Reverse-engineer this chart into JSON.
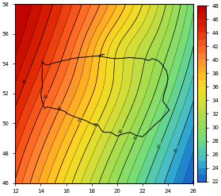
{
  "xlim": [
    12,
    26
  ],
  "ylim": [
    46,
    58
  ],
  "xticks": [
    12,
    14,
    16,
    18,
    20,
    22,
    24,
    26
  ],
  "yticks": [
    46,
    48,
    50,
    52,
    54,
    56,
    58
  ],
  "vmin": 22,
  "vmax": 48,
  "colorbar_ticks": [
    22,
    24,
    26,
    28,
    30,
    32,
    34,
    36,
    38,
    40,
    42,
    44,
    46,
    48
  ],
  "contour_levels_step": 1,
  "figsize": [
    2.79,
    2.47
  ],
  "dpi": 100,
  "colormap": [
    [
      0.0,
      "#1a5fc8"
    ],
    [
      0.04,
      "#1e7acc"
    ],
    [
      0.08,
      "#2299d4"
    ],
    [
      0.12,
      "#44bbcc"
    ],
    [
      0.18,
      "#55ccaa"
    ],
    [
      0.25,
      "#77dd77"
    ],
    [
      0.33,
      "#99dd55"
    ],
    [
      0.4,
      "#bbdd44"
    ],
    [
      0.46,
      "#dddd33"
    ],
    [
      0.52,
      "#eedd22"
    ],
    [
      0.58,
      "#ffcc22"
    ],
    [
      0.64,
      "#ffaa22"
    ],
    [
      0.7,
      "#ff8833"
    ],
    [
      0.76,
      "#ff6622"
    ],
    [
      0.82,
      "#ee4411"
    ],
    [
      0.88,
      "#dd2200"
    ],
    [
      0.94,
      "#cc1100"
    ],
    [
      1.0,
      "#bb0000"
    ]
  ],
  "poland_border": [
    [
      14.12,
      54.18
    ],
    [
      14.22,
      54.05
    ],
    [
      14.35,
      53.95
    ],
    [
      14.55,
      53.92
    ],
    [
      15.0,
      54.05
    ],
    [
      15.5,
      54.15
    ],
    [
      16.0,
      54.25
    ],
    [
      16.5,
      54.35
    ],
    [
      17.0,
      54.42
    ],
    [
      17.5,
      54.45
    ],
    [
      18.0,
      54.5
    ],
    [
      18.5,
      54.52
    ],
    [
      19.0,
      54.45
    ],
    [
      19.5,
      54.38
    ],
    [
      20.0,
      54.35
    ],
    [
      20.5,
      54.38
    ],
    [
      21.0,
      54.42
    ],
    [
      21.5,
      54.38
    ],
    [
      22.0,
      54.35
    ],
    [
      22.5,
      54.22
    ],
    [
      22.76,
      54.35
    ],
    [
      23.2,
      54.22
    ],
    [
      23.5,
      54.0
    ],
    [
      23.9,
      53.5
    ],
    [
      24.0,
      53.0
    ],
    [
      23.9,
      52.5
    ],
    [
      23.7,
      52.0
    ],
    [
      23.6,
      51.5
    ],
    [
      24.1,
      50.9
    ],
    [
      23.8,
      50.6
    ],
    [
      23.5,
      50.3
    ],
    [
      22.9,
      49.85
    ],
    [
      22.5,
      49.5
    ],
    [
      22.0,
      49.1
    ],
    [
      21.5,
      49.2
    ],
    [
      21.0,
      49.4
    ],
    [
      20.5,
      49.3
    ],
    [
      20.0,
      49.15
    ],
    [
      19.5,
      49.4
    ],
    [
      19.0,
      49.4
    ],
    [
      18.8,
      49.5
    ],
    [
      18.5,
      49.9
    ],
    [
      18.0,
      49.98
    ],
    [
      17.5,
      50.2
    ],
    [
      17.0,
      50.35
    ],
    [
      16.8,
      50.4
    ],
    [
      16.5,
      50.5
    ],
    [
      16.1,
      50.65
    ],
    [
      15.9,
      50.8
    ],
    [
      15.5,
      50.92
    ],
    [
      15.0,
      51.0
    ],
    [
      14.8,
      51.05
    ],
    [
      14.5,
      51.1
    ],
    [
      14.3,
      51.0
    ],
    [
      14.1,
      51.5
    ],
    [
      14.0,
      52.0
    ],
    [
      14.15,
      52.5
    ],
    [
      14.1,
      53.0
    ],
    [
      14.12,
      53.5
    ],
    [
      14.12,
      54.18
    ]
  ],
  "extra_border": [
    [
      18.5,
      54.52
    ],
    [
      18.8,
      54.6
    ],
    [
      19.0,
      54.65
    ],
    [
      18.5,
      54.52
    ]
  ]
}
